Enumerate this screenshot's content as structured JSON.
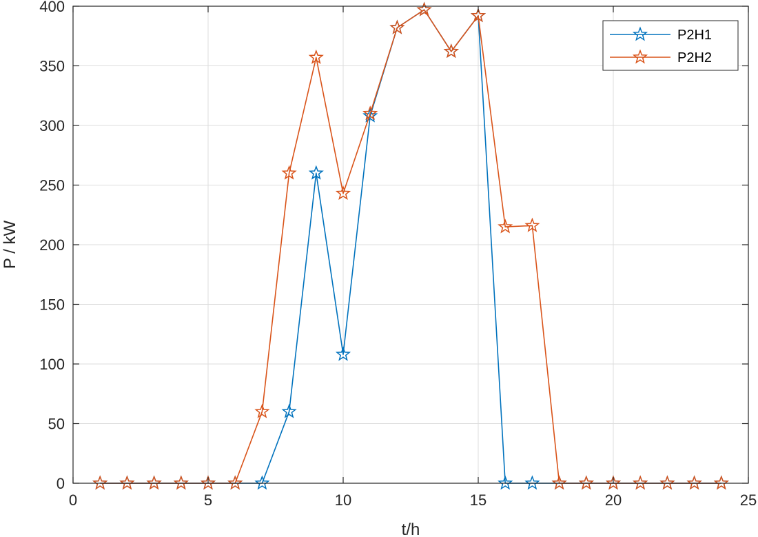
{
  "chart_data": {
    "type": "line",
    "xlabel": "t/h",
    "ylabel": "P / kW",
    "xlim": [
      0,
      25
    ],
    "ylim": [
      0,
      400
    ],
    "xticks": [
      0,
      5,
      10,
      15,
      20,
      25
    ],
    "yticks": [
      0,
      50,
      100,
      150,
      200,
      250,
      300,
      350,
      400
    ],
    "grid": true,
    "legend_position": "top-right",
    "x": [
      1,
      2,
      3,
      4,
      5,
      6,
      7,
      8,
      9,
      10,
      11,
      12,
      13,
      14,
      15,
      16,
      17,
      18,
      19,
      20,
      21,
      22,
      23,
      24
    ],
    "series": [
      {
        "name": "P2H1",
        "color": "#0072BD",
        "marker": "star",
        "values": [
          0,
          0,
          0,
          0,
          0,
          0,
          0,
          60,
          260,
          108,
          308,
          382,
          397,
          362,
          392,
          0,
          0,
          0,
          0,
          0,
          0,
          0,
          0,
          0
        ]
      },
      {
        "name": "P2H2",
        "color": "#D95319",
        "marker": "star",
        "values": [
          0,
          0,
          0,
          0,
          0,
          0,
          60,
          260,
          357,
          243,
          310,
          382,
          397,
          362,
          392,
          215,
          216,
          0,
          0,
          0,
          0,
          0,
          0,
          0
        ]
      }
    ]
  }
}
